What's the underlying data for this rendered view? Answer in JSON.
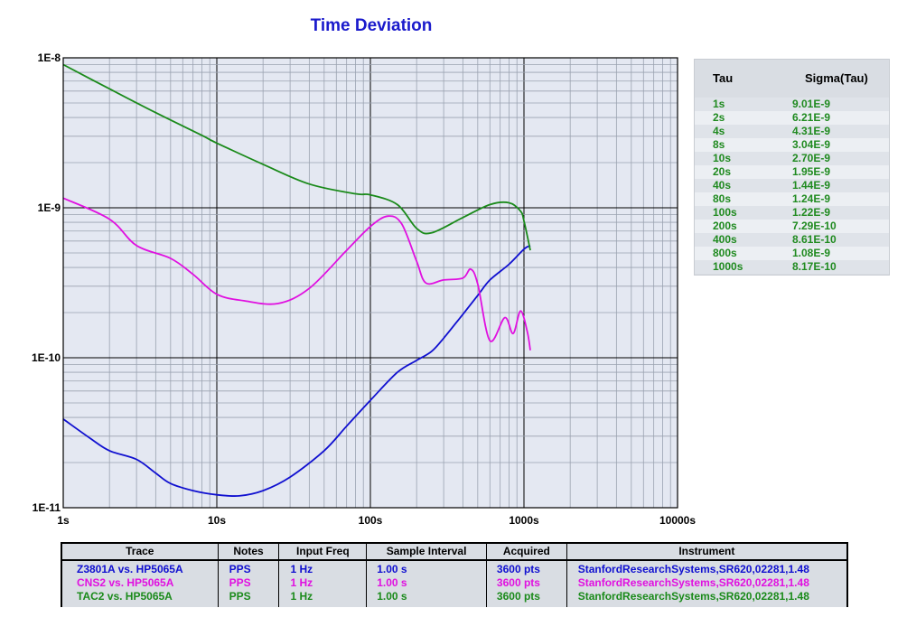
{
  "chart_data": {
    "type": "line",
    "title": "Time Deviation",
    "xscale": "log",
    "yscale": "log",
    "xlim": [
      1,
      10000
    ],
    "ylim": [
      1e-11,
      1e-08
    ],
    "x_tick_labels": [
      "1s",
      "10s",
      "100s",
      "1000s",
      "10000s"
    ],
    "y_tick_labels": [
      "1E-8",
      "1E-9",
      "1E-10",
      "1E-11"
    ],
    "grid": true,
    "series": [
      {
        "name": "Z3801A vs. HP5065A",
        "color": "#1010d0",
        "points": [
          [
            1,
            3.9e-11
          ],
          [
            1.5,
            2.9e-11
          ],
          [
            2,
            2.4e-11
          ],
          [
            3,
            2.1e-11
          ],
          [
            4,
            1.7e-11
          ],
          [
            5,
            1.45e-11
          ],
          [
            7,
            1.3e-11
          ],
          [
            10,
            1.22e-11
          ],
          [
            14,
            1.2e-11
          ],
          [
            20,
            1.3e-11
          ],
          [
            30,
            1.6e-11
          ],
          [
            50,
            2.4e-11
          ],
          [
            70,
            3.5e-11
          ],
          [
            100,
            5.2e-11
          ],
          [
            150,
            8e-11
          ],
          [
            200,
            9.6e-11
          ],
          [
            250,
            1.1e-10
          ],
          [
            300,
            1.35e-10
          ],
          [
            400,
            1.95e-10
          ],
          [
            500,
            2.6e-10
          ],
          [
            600,
            3.3e-10
          ],
          [
            800,
            4.2e-10
          ],
          [
            1000,
            5.3e-10
          ],
          [
            1100,
            5.6e-10
          ]
        ]
      },
      {
        "name": "CNS2 vs. HP5065A",
        "color": "#e010e0",
        "points": [
          [
            1,
            1.16e-09
          ],
          [
            2,
            8.4e-10
          ],
          [
            3,
            5.6e-10
          ],
          [
            5,
            4.6e-10
          ],
          [
            7,
            3.6e-10
          ],
          [
            10,
            2.65e-10
          ],
          [
            15,
            2.4e-10
          ],
          [
            25,
            2.3e-10
          ],
          [
            40,
            2.9e-10
          ],
          [
            70,
            5.2e-10
          ],
          [
            100,
            7.5e-10
          ],
          [
            130,
            8.8e-10
          ],
          [
            160,
            7.8e-10
          ],
          [
            200,
            4.4e-10
          ],
          [
            230,
            3.15e-10
          ],
          [
            300,
            3.3e-10
          ],
          [
            400,
            3.4e-10
          ],
          [
            450,
            3.9e-10
          ],
          [
            500,
            3.1e-10
          ],
          [
            600,
            1.3e-10
          ],
          [
            750,
            1.85e-10
          ],
          [
            850,
            1.45e-10
          ],
          [
            950,
            2.05e-10
          ],
          [
            1050,
            1.5e-10
          ],
          [
            1100,
            1.12e-10
          ]
        ]
      },
      {
        "name": "TAC2 vs. HP5065A",
        "color": "#1a8a1a",
        "points": [
          [
            1,
            9.01e-09
          ],
          [
            2,
            6.21e-09
          ],
          [
            4,
            4.31e-09
          ],
          [
            8,
            3.04e-09
          ],
          [
            10,
            2.7e-09
          ],
          [
            20,
            1.95e-09
          ],
          [
            40,
            1.44e-09
          ],
          [
            80,
            1.24e-09
          ],
          [
            100,
            1.22e-09
          ],
          [
            150,
            1.05e-09
          ],
          [
            200,
            7.29e-10
          ],
          [
            250,
            6.8e-10
          ],
          [
            400,
            8.61e-10
          ],
          [
            600,
            1.05e-09
          ],
          [
            800,
            1.08e-09
          ],
          [
            950,
            9.5e-10
          ],
          [
            1000,
            8.17e-10
          ],
          [
            1100,
            5.2e-10
          ]
        ]
      }
    ]
  },
  "tau_table": {
    "header_tau": "Tau",
    "header_sigma": "Sigma(Tau)",
    "rows": [
      {
        "tau": "1s",
        "sigma": "9.01E-9"
      },
      {
        "tau": "2s",
        "sigma": "6.21E-9"
      },
      {
        "tau": "4s",
        "sigma": "4.31E-9"
      },
      {
        "tau": "8s",
        "sigma": "3.04E-9"
      },
      {
        "tau": "10s",
        "sigma": "2.70E-9"
      },
      {
        "tau": "20s",
        "sigma": "1.95E-9"
      },
      {
        "tau": "40s",
        "sigma": "1.44E-9"
      },
      {
        "tau": "80s",
        "sigma": "1.24E-9"
      },
      {
        "tau": "100s",
        "sigma": "1.22E-9"
      },
      {
        "tau": "200s",
        "sigma": "7.29E-10"
      },
      {
        "tau": "400s",
        "sigma": "8.61E-10"
      },
      {
        "tau": "800s",
        "sigma": "1.08E-9"
      },
      {
        "tau": "1000s",
        "sigma": "8.17E-10"
      }
    ]
  },
  "trace_table": {
    "headers": [
      "Trace",
      "Notes",
      "Input Freq",
      "Sample Interval",
      "Acquired",
      "Instrument"
    ],
    "rows": [
      {
        "trace": "Z3801A vs. HP5065A",
        "notes": "PPS",
        "input_freq": "1 Hz",
        "sample_interval": "1.00 s",
        "acquired": "3600 pts",
        "instrument": "StanfordResearchSystems,SR620,02281,1.48",
        "color": "#1010d0"
      },
      {
        "trace": "CNS2 vs. HP5065A",
        "notes": "PPS",
        "input_freq": "1 Hz",
        "sample_interval": "1.00 s",
        "acquired": "3600 pts",
        "instrument": "StanfordResearchSystems,SR620,02281,1.48",
        "color": "#e010e0"
      },
      {
        "trace": "TAC2 vs. HP5065A",
        "notes": "PPS",
        "input_freq": "1 Hz",
        "sample_interval": "1.00 s",
        "acquired": "3600 pts",
        "instrument": "StanfordResearchSystems,SR620,02281,1.48",
        "color": "#1a8a1a"
      }
    ]
  }
}
